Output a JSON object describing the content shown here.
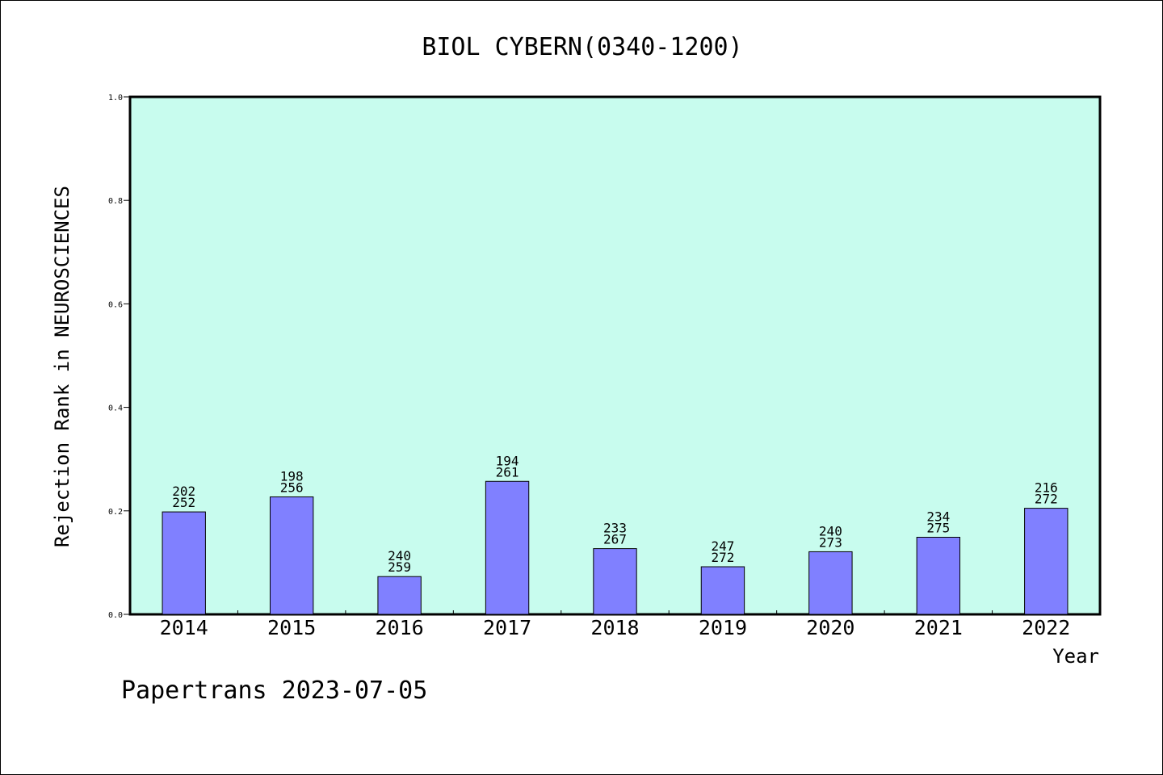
{
  "chart_data": {
    "type": "bar",
    "title": "BIOL CYBERN(0340-1200)",
    "ylabel": "Rejection Rank in NEUROSCIENCES",
    "xlabel": "Year",
    "ylim": [
      0,
      1.0
    ],
    "yticks": [
      "0.0",
      "0.2",
      "0.4",
      "0.6",
      "0.8",
      "1.0"
    ],
    "categories": [
      "2014",
      "2015",
      "2016",
      "2017",
      "2018",
      "2019",
      "2020",
      "2021",
      "2022"
    ],
    "values": [
      0.198,
      0.227,
      0.073,
      0.257,
      0.127,
      0.092,
      0.121,
      0.149,
      0.205
    ],
    "labels_top": [
      "202",
      "198",
      "240",
      "194",
      "233",
      "247",
      "240",
      "234",
      "216"
    ],
    "labels_bottom": [
      "252",
      "256",
      "259",
      "261",
      "267",
      "272",
      "273",
      "275",
      "272"
    ],
    "grid": false,
    "colors": {
      "plot_background": "#c8fcee",
      "bar_fill": "#8080ff",
      "bar_stroke": "#000000"
    }
  },
  "footer": "Papertrans 2023-07-05"
}
